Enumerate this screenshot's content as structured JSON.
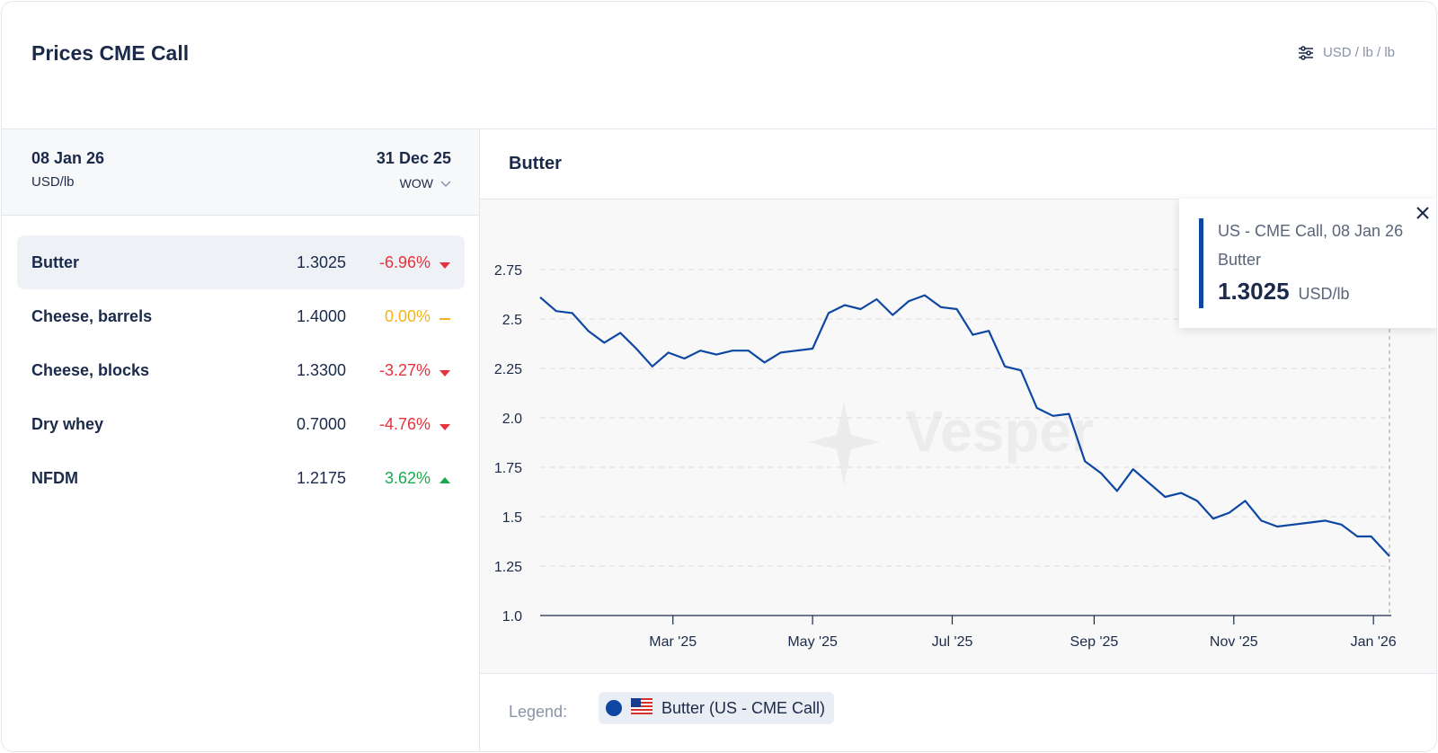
{
  "header": {
    "title": "Prices CME Call",
    "units_label": "USD / lb / lb"
  },
  "panel": {
    "current_date": "08 Jan 26",
    "current_unit": "USD/lb",
    "compare_date": "31 Dec 25",
    "period": "WOW"
  },
  "rows": [
    {
      "name": "Butter",
      "value": "1.3025",
      "change": "-6.96%",
      "trend": "down",
      "active": true
    },
    {
      "name": "Cheese, barrels",
      "value": "1.4000",
      "change": "0.00%",
      "trend": "flat",
      "active": false
    },
    {
      "name": "Cheese, blocks",
      "value": "1.3300",
      "change": "-3.27%",
      "trend": "down",
      "active": false
    },
    {
      "name": "Dry whey",
      "value": "0.7000",
      "change": "-4.76%",
      "trend": "down",
      "active": false
    },
    {
      "name": "NFDM",
      "value": "1.2175",
      "change": "3.62%",
      "trend": "up",
      "active": false
    }
  ],
  "chart": {
    "title": "Butter",
    "watermark": "Vesper",
    "legend_label": "Legend:",
    "legend_series": "Butter (US - CME Call)"
  },
  "tooltip": {
    "line1": "US - CME Call, 08 Jan 26",
    "line2": "Butter",
    "value": "1.3025",
    "unit": "USD/lb"
  },
  "colors": {
    "series": "#0d47a1",
    "negative": "#e5323c",
    "flat": "#f2b51c",
    "positive": "#1aa84c"
  },
  "chart_data": {
    "type": "line",
    "series": [
      {
        "name": "Butter (US - CME Call)",
        "x": [
          "2025-01-02",
          "2025-01-09",
          "2025-01-16",
          "2025-01-23",
          "2025-01-30",
          "2025-02-06",
          "2025-02-13",
          "2025-02-20",
          "2025-02-27",
          "2025-03-06",
          "2025-03-13",
          "2025-03-20",
          "2025-03-27",
          "2025-04-03",
          "2025-04-10",
          "2025-04-17",
          "2025-04-24",
          "2025-05-01",
          "2025-05-08",
          "2025-05-15",
          "2025-05-22",
          "2025-05-29",
          "2025-06-05",
          "2025-06-12",
          "2025-06-19",
          "2025-06-26",
          "2025-07-03",
          "2025-07-10",
          "2025-07-17",
          "2025-07-24",
          "2025-07-31",
          "2025-08-07",
          "2025-08-14",
          "2025-08-21",
          "2025-08-28",
          "2025-09-04",
          "2025-09-11",
          "2025-09-18",
          "2025-09-25",
          "2025-10-02",
          "2025-10-09",
          "2025-10-16",
          "2025-10-23",
          "2025-10-30",
          "2025-11-06",
          "2025-11-13",
          "2025-11-20",
          "2025-11-27",
          "2025-12-04",
          "2025-12-11",
          "2025-12-18",
          "2025-12-25",
          "2025-12-31",
          "2026-01-08"
        ],
        "y": [
          2.61,
          2.54,
          2.53,
          2.44,
          2.38,
          2.43,
          2.35,
          2.26,
          2.33,
          2.3,
          2.34,
          2.32,
          2.34,
          2.34,
          2.28,
          2.33,
          2.34,
          2.35,
          2.53,
          2.57,
          2.55,
          2.6,
          2.52,
          2.59,
          2.62,
          2.56,
          2.55,
          2.42,
          2.44,
          2.26,
          2.24,
          2.05,
          2.01,
          2.02,
          1.78,
          1.72,
          1.63,
          1.74,
          1.67,
          1.6,
          1.62,
          1.58,
          1.49,
          1.52,
          1.58,
          1.48,
          1.45,
          1.46,
          1.47,
          1.48,
          1.46,
          1.4,
          1.4,
          1.3
        ]
      }
    ],
    "x_ticks": [
      "Mar '25",
      "May '25",
      "Jul '25",
      "Sep '25",
      "Nov '25",
      "Jan '26"
    ],
    "y_ticks": [
      "2.75",
      "2.5",
      "2.25",
      "2.0",
      "1.75",
      "1.5",
      "1.25",
      "1.0"
    ],
    "ylim": [
      1.0,
      2.75
    ],
    "grid": true,
    "legend_position": "bottom"
  }
}
